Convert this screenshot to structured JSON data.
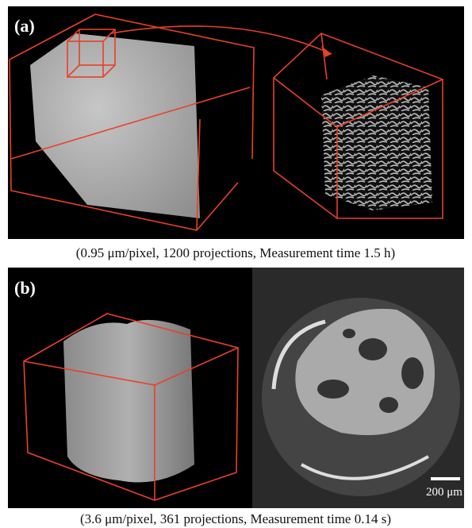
{
  "panels": [
    {
      "label": "(a)",
      "caption": "(0.95 μm/pixel, 1200 projections, Measurement time 1.5 h)"
    },
    {
      "label": "(b)",
      "caption": "(3.6 μm/pixel, 361 projections, Measurement time 0.14 s)",
      "scale_bar": "200 μm"
    }
  ]
}
